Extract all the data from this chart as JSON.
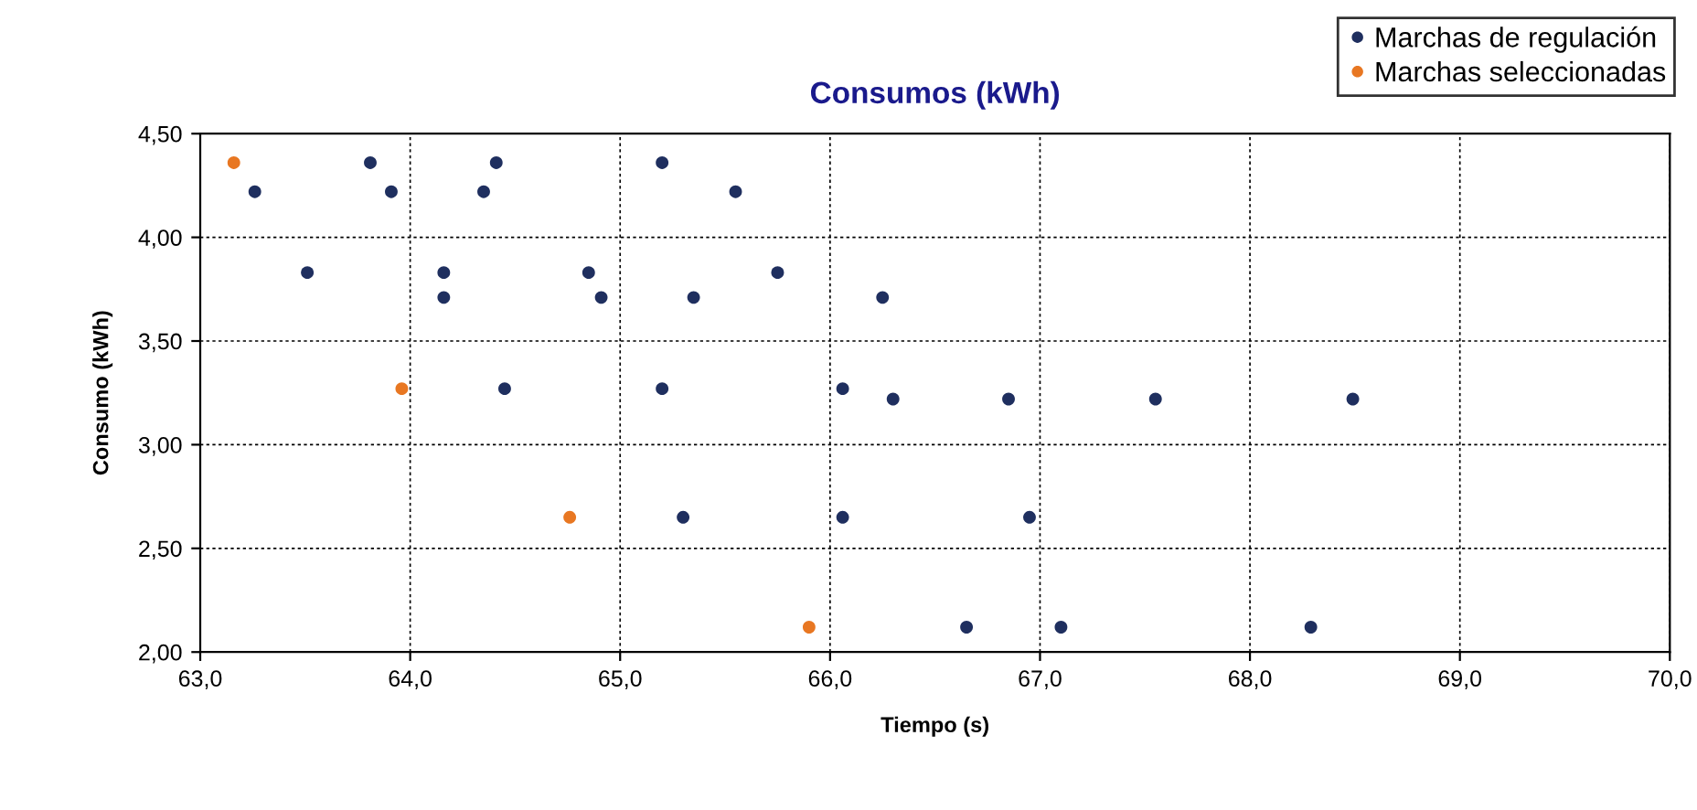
{
  "chart_data": {
    "type": "scatter",
    "title": "Consumos (kWh)",
    "xlabel": "Tiempo (s)",
    "ylabel": "Consumo (kWh)",
    "xlim": [
      63,
      70
    ],
    "ylim": [
      2,
      4.5
    ],
    "xticks": [
      {
        "value": 63,
        "label": "63,0"
      },
      {
        "value": 64,
        "label": "64,0"
      },
      {
        "value": 65,
        "label": "65,0"
      },
      {
        "value": 66,
        "label": "66,0"
      },
      {
        "value": 67,
        "label": "67,0"
      },
      {
        "value": 68,
        "label": "68,0"
      },
      {
        "value": 69,
        "label": "69,0"
      },
      {
        "value": 70,
        "label": "70,0"
      }
    ],
    "yticks": [
      {
        "value": 2,
        "label": "2,00"
      },
      {
        "value": 2.5,
        "label": "2,50"
      },
      {
        "value": 3,
        "label": "3,00"
      },
      {
        "value": 3.5,
        "label": "3,50"
      },
      {
        "value": 4,
        "label": "4,00"
      },
      {
        "value": 4.5,
        "label": "4,50"
      }
    ],
    "grid": true,
    "legend": "top right",
    "marker": "circle",
    "series": [
      {
        "name": "Marchas de regulación",
        "color": "#1f2f5f",
        "x": [
          63.26,
          63.51,
          63.81,
          63.91,
          64.16,
          64.16,
          64.35,
          64.41,
          64.45,
          64.85,
          64.91,
          65.2,
          65.2,
          65.3,
          65.35,
          65.55,
          65.75,
          66.06,
          66.06,
          66.25,
          66.3,
          66.65,
          66.85,
          66.95,
          67.1,
          67.55,
          68.29,
          68.49
        ],
        "values": [
          4.22,
          3.83,
          4.36,
          4.22,
          3.83,
          3.71,
          4.22,
          4.36,
          3.27,
          3.83,
          3.71,
          4.36,
          3.27,
          2.65,
          3.71,
          4.22,
          3.83,
          3.27,
          2.65,
          3.71,
          3.22,
          2.12,
          3.22,
          2.65,
          2.12,
          3.22,
          2.12,
          3.22
        ]
      },
      {
        "name": "Marchas seleccionadas",
        "color": "#e87722",
        "x": [
          63.16,
          63.96,
          64.76,
          65.9
        ],
        "values": [
          4.36,
          3.27,
          2.65,
          2.12
        ]
      }
    ]
  }
}
